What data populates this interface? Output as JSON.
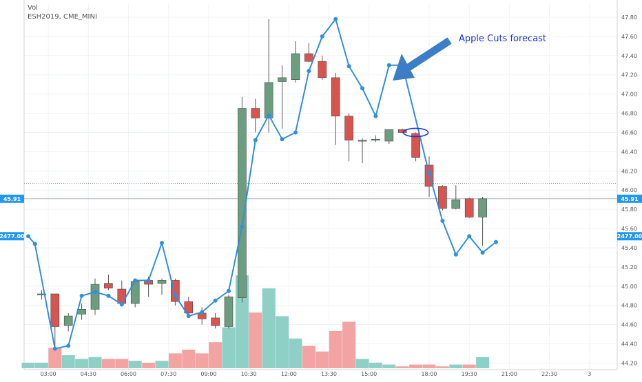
{
  "header": {
    "line1": "Vol",
    "line2": "ESH2019, CME_MINI"
  },
  "colors": {
    "up": "#6b9e7e",
    "down": "#d9534f",
    "line": "#2f8fdf",
    "vol_up": "#8fd0c6",
    "vol_down": "#f4a3a3",
    "annotation": "#1a33d6",
    "marker": "#2196f3",
    "axis_text": "#555555"
  },
  "chart_data": {
    "type": "candlestick",
    "symbol": "ESH2019, CME_MINI",
    "indicator": "Vol",
    "y_ticks": [
      "44.20",
      "44.40",
      "44.60",
      "44.80",
      "45.00",
      "45.20",
      "45.40",
      "45.60",
      "45.80",
      "46.00",
      "46.20",
      "46.40",
      "46.60",
      "46.80",
      "47.00",
      "47.20",
      "47.40",
      "47.60",
      "47.80"
    ],
    "x_ticks": [
      "03:00",
      "04:30",
      "06:00",
      "07:30",
      "09:00",
      "10:30",
      "12:00",
      "13:30",
      "15:00",
      "18:00",
      "19:30",
      "21:00",
      "22:30",
      "3"
    ],
    "ylim": [
      44.1,
      47.95
    ],
    "candles": [
      {
        "t": 0.5,
        "o": 44.92,
        "h": 44.96,
        "l": 44.86,
        "c": 44.92
      },
      {
        "t": 1.0,
        "o": 44.92,
        "h": 44.92,
        "l": 44.35,
        "c": 44.58
      },
      {
        "t": 1.5,
        "o": 44.59,
        "h": 44.72,
        "l": 44.53,
        "c": 44.69
      },
      {
        "t": 2.0,
        "o": 44.71,
        "h": 44.82,
        "l": 44.65,
        "c": 44.76
      },
      {
        "t": 2.5,
        "o": 44.76,
        "h": 45.08,
        "l": 44.7,
        "c": 45.02
      },
      {
        "t": 3.0,
        "o": 45.03,
        "h": 45.12,
        "l": 44.96,
        "c": 44.98
      },
      {
        "t": 3.5,
        "o": 44.97,
        "h": 45.06,
        "l": 44.8,
        "c": 44.82
      },
      {
        "t": 4.0,
        "o": 44.82,
        "h": 45.06,
        "l": 44.78,
        "c": 45.05
      },
      {
        "t": 4.5,
        "o": 45.06,
        "h": 45.1,
        "l": 44.89,
        "c": 45.02
      },
      {
        "t": 5.0,
        "o": 45.03,
        "h": 45.08,
        "l": 44.91,
        "c": 45.06
      },
      {
        "t": 5.5,
        "o": 45.06,
        "h": 45.08,
        "l": 44.8,
        "c": 44.84
      },
      {
        "t": 6.0,
        "o": 44.84,
        "h": 44.89,
        "l": 44.68,
        "c": 44.72
      },
      {
        "t": 6.5,
        "o": 44.72,
        "h": 44.78,
        "l": 44.6,
        "c": 44.66
      },
      {
        "t": 7.0,
        "o": 44.67,
        "h": 44.72,
        "l": 44.56,
        "c": 44.59
      },
      {
        "t": 7.5,
        "o": 44.58,
        "h": 44.91,
        "l": 44.56,
        "c": 44.89
      },
      {
        "t": 8.0,
        "o": 44.88,
        "h": 46.97,
        "l": 44.83,
        "c": 46.85
      },
      {
        "t": 8.5,
        "o": 46.85,
        "h": 46.95,
        "l": 46.6,
        "c": 46.75
      },
      {
        "t": 9.0,
        "o": 46.75,
        "h": 47.78,
        "l": 46.6,
        "c": 47.12
      },
      {
        "t": 9.5,
        "o": 47.13,
        "h": 47.3,
        "l": 46.64,
        "c": 47.17
      },
      {
        "t": 10.0,
        "o": 47.15,
        "h": 47.55,
        "l": 47.12,
        "c": 47.42
      },
      {
        "t": 10.5,
        "o": 47.42,
        "h": 47.53,
        "l": 47.33,
        "c": 47.34
      },
      {
        "t": 11.0,
        "o": 47.34,
        "h": 47.4,
        "l": 47.15,
        "c": 47.17
      },
      {
        "t": 11.5,
        "o": 47.17,
        "h": 47.22,
        "l": 46.47,
        "c": 46.77
      },
      {
        "t": 12.0,
        "o": 46.77,
        "h": 46.8,
        "l": 46.3,
        "c": 46.52
      },
      {
        "t": 12.5,
        "o": 46.52,
        "h": 46.54,
        "l": 46.28,
        "c": 46.52
      },
      {
        "t": 13.0,
        "o": 46.52,
        "h": 46.57,
        "l": 46.5,
        "c": 46.53
      },
      {
        "t": 13.5,
        "o": 46.51,
        "h": 46.63,
        "l": 46.48,
        "c": 46.63
      },
      {
        "t": 14.0,
        "o": 46.63,
        "h": 46.64,
        "l": 46.59,
        "c": 46.6
      },
      {
        "t": 14.5,
        "o": 46.59,
        "h": 46.6,
        "l": 46.3,
        "c": 46.34
      },
      {
        "t": 15.0,
        "o": 46.26,
        "h": 46.35,
        "l": 45.93,
        "c": 46.04
      },
      {
        "t": 15.5,
        "o": 46.04,
        "h": 46.05,
        "l": 45.79,
        "c": 45.81
      },
      {
        "t": 16.0,
        "o": 45.81,
        "h": 46.05,
        "l": 45.8,
        "c": 45.9
      },
      {
        "t": 16.5,
        "o": 45.91,
        "h": 45.92,
        "l": 45.71,
        "c": 45.72
      },
      {
        "t": 17.0,
        "o": 45.72,
        "h": 45.93,
        "l": 45.42,
        "c": 45.91
      }
    ],
    "line": [
      [
        0.0,
        45.52
      ],
      [
        0.25,
        45.44
      ],
      [
        1.0,
        44.35
      ],
      [
        1.5,
        44.38
      ],
      [
        2.0,
        44.9
      ],
      [
        2.5,
        44.94
      ],
      [
        3.0,
        44.9
      ],
      [
        3.5,
        44.81
      ],
      [
        4.0,
        45.06
      ],
      [
        4.5,
        45.06
      ],
      [
        5.0,
        45.45
      ],
      [
        5.5,
        44.9
      ],
      [
        6.0,
        44.69
      ],
      [
        6.5,
        44.73
      ],
      [
        7.0,
        44.85
      ],
      [
        7.5,
        44.95
      ],
      [
        8.0,
        45.62
      ],
      [
        8.5,
        46.52
      ],
      [
        9.0,
        46.78
      ],
      [
        9.5,
        46.53
      ],
      [
        10.0,
        46.6
      ],
      [
        10.5,
        47.24
      ],
      [
        11.0,
        47.6
      ],
      [
        11.5,
        47.78
      ],
      [
        12.0,
        47.29
      ],
      [
        12.5,
        47.06
      ],
      [
        13.0,
        46.77
      ],
      [
        13.5,
        47.3
      ],
      [
        14.0,
        47.3
      ],
      [
        15.0,
        46.17
      ],
      [
        15.5,
        45.68
      ],
      [
        16.0,
        45.33
      ],
      [
        16.5,
        45.52
      ],
      [
        17.0,
        45.35
      ],
      [
        17.5,
        45.46
      ]
    ],
    "volume": [
      {
        "t": 0.0,
        "v": 3,
        "dir": "up"
      },
      {
        "t": 0.5,
        "v": 3,
        "dir": "up"
      },
      {
        "t": 1.0,
        "v": 11,
        "dir": "down"
      },
      {
        "t": 1.5,
        "v": 7,
        "dir": "up"
      },
      {
        "t": 2.0,
        "v": 5,
        "dir": "up"
      },
      {
        "t": 2.5,
        "v": 6,
        "dir": "up"
      },
      {
        "t": 3.0,
        "v": 5,
        "dir": "down"
      },
      {
        "t": 3.5,
        "v": 5,
        "dir": "down"
      },
      {
        "t": 4.0,
        "v": 4,
        "dir": "up"
      },
      {
        "t": 4.5,
        "v": 3,
        "dir": "down"
      },
      {
        "t": 5.0,
        "v": 4,
        "dir": "up"
      },
      {
        "t": 5.5,
        "v": 8,
        "dir": "down"
      },
      {
        "t": 6.0,
        "v": 10,
        "dir": "down"
      },
      {
        "t": 6.5,
        "v": 8,
        "dir": "down"
      },
      {
        "t": 7.0,
        "v": 14,
        "dir": "down"
      },
      {
        "t": 7.5,
        "v": 22,
        "dir": "up"
      },
      {
        "t": 8.0,
        "v": 50,
        "dir": "up"
      },
      {
        "t": 8.5,
        "v": 30,
        "dir": "down"
      },
      {
        "t": 9.0,
        "v": 43,
        "dir": "up"
      },
      {
        "t": 9.5,
        "v": 28,
        "dir": "up"
      },
      {
        "t": 10.0,
        "v": 16,
        "dir": "up"
      },
      {
        "t": 10.5,
        "v": 12,
        "dir": "down"
      },
      {
        "t": 11.0,
        "v": 9,
        "dir": "down"
      },
      {
        "t": 11.5,
        "v": 20,
        "dir": "down"
      },
      {
        "t": 12.0,
        "v": 25,
        "dir": "down"
      },
      {
        "t": 12.5,
        "v": 5,
        "dir": "up"
      },
      {
        "t": 13.0,
        "v": 3,
        "dir": "up"
      },
      {
        "t": 13.5,
        "v": 2,
        "dir": "up"
      },
      {
        "t": 14.0,
        "v": 1,
        "dir": "down"
      },
      {
        "t": 14.5,
        "v": 2,
        "dir": "down"
      },
      {
        "t": 15.0,
        "v": 2,
        "dir": "down"
      },
      {
        "t": 15.5,
        "v": 1,
        "dir": "down"
      },
      {
        "t": 16.0,
        "v": 2,
        "dir": "up"
      },
      {
        "t": 16.5,
        "v": 2,
        "dir": "down"
      },
      {
        "t": 17.0,
        "v": 6,
        "dir": "up"
      }
    ],
    "last_price": 45.91,
    "dotted_level": 46.07,
    "volume_marker": {
      "label": "2477.00",
      "price": 45.52
    },
    "last_price_label": "45.91",
    "annotation": {
      "text": "Apple Cuts forecast"
    },
    "grid": true
  }
}
